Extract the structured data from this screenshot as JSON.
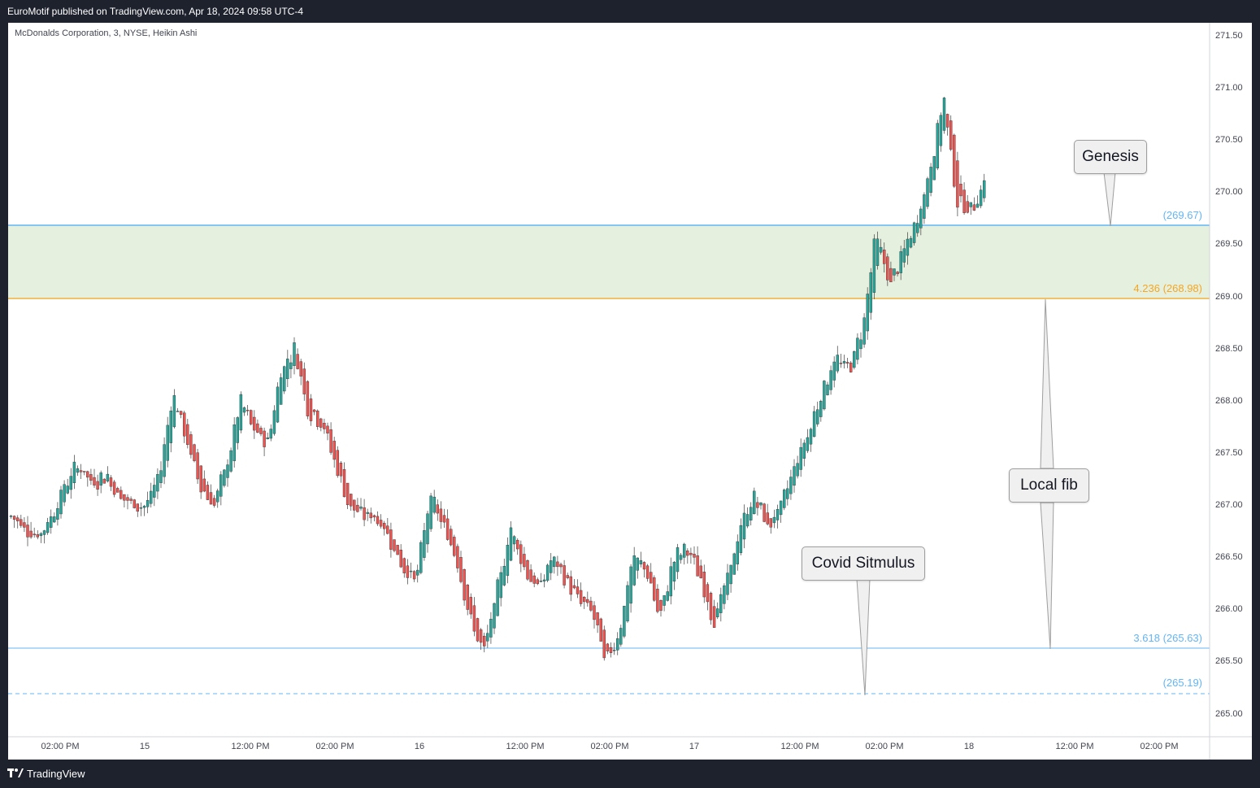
{
  "header": {
    "published": "EuroMotif published on TradingView.com, Apr 18, 2024 09:58 UTC-4"
  },
  "chart": {
    "symbol_title": "McDonalds Corporation, 3, NYSE, Heikin Ashi",
    "price_ticks": [
      "271.50",
      "271.00",
      "270.50",
      "270.00",
      "269.50",
      "269.00",
      "268.50",
      "268.00",
      "267.50",
      "267.00",
      "266.50",
      "266.00",
      "265.50",
      "265.00"
    ],
    "time_ticks": [
      "02:00 PM",
      "15",
      "12:00 PM",
      "02:00 PM",
      "16",
      "12:00 PM",
      "02:00 PM",
      "17",
      "12:00 PM",
      "02:00 PM",
      "18",
      "12:00 PM",
      "02:00 PM"
    ],
    "levels": {
      "top_zone": "(269.67)",
      "fib_4236": "4.236 (268.98)",
      "fib_3618": "3.618 (265.63)",
      "bottom_dashed": "(265.19)"
    },
    "callouts": {
      "genesis": "Genesis",
      "local_fib": "Local fib",
      "covid": "Covid Sitmulus"
    },
    "colors": {
      "up_candle": "#26a69a",
      "down_candle": "#ef5350",
      "zone_fill": "#e6f0df",
      "blue_level": "#64b5f6",
      "orange_level": "#f5a623"
    }
  },
  "footer": {
    "brand": "TradingView"
  },
  "chart_data": {
    "type": "candlestick",
    "series": [
      {
        "name": "",
        "kind": "heikin_ashi_close_path",
        "values": [
          266.9,
          266.8,
          266.7,
          266.9,
          267.2,
          267.4,
          267.2,
          267.3,
          267.1,
          267.0,
          267.0,
          267.3,
          268.1,
          267.6,
          267.2,
          267.0,
          267.4,
          268.0,
          267.7,
          267.6,
          268.3,
          268.5,
          267.9,
          267.8,
          267.4,
          267.0,
          266.9,
          266.9,
          266.7,
          266.4,
          266.3,
          267.1,
          266.8,
          266.5,
          265.9,
          265.6,
          266.2,
          266.8,
          266.4,
          266.2,
          266.5,
          266.3,
          266.1,
          266.0,
          265.5,
          265.8,
          266.5,
          266.4,
          265.9,
          266.5,
          266.6,
          266.3,
          265.9,
          266.3,
          266.8,
          267.1,
          266.8,
          267.0,
          267.4,
          267.7,
          268.1,
          268.4,
          268.3,
          268.7,
          269.6,
          269.1,
          269.4,
          269.7,
          270.2,
          270.9,
          269.9,
          269.8,
          270.1
        ]
      }
    ],
    "ylim": [
      264.8,
      271.6
    ]
  }
}
